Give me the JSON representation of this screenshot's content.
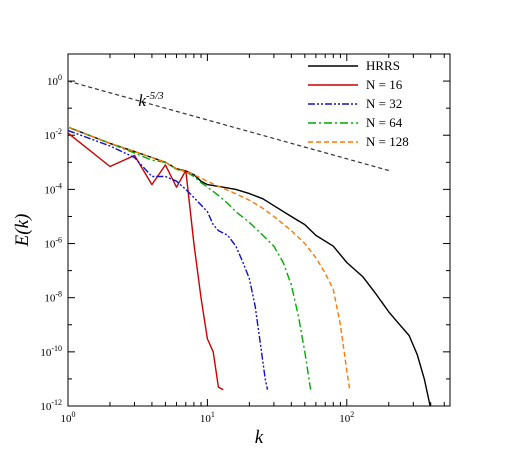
{
  "chart_data": {
    "type": "line",
    "xlabel": "k",
    "ylabel": "E(k)",
    "x_scale": "log",
    "y_scale": "log",
    "xlim": [
      1,
      550
    ],
    "ylim": [
      1e-12,
      10
    ],
    "x_ticks": [
      {
        "value": 1,
        "base": "10",
        "exp": "0"
      },
      {
        "value": 10,
        "base": "10",
        "exp": "1"
      },
      {
        "value": 100,
        "base": "10",
        "exp": "2"
      }
    ],
    "y_ticks": [
      {
        "value": 1,
        "base": "10",
        "exp": "0"
      },
      {
        "value": 0.01,
        "base": "10",
        "exp": "-2"
      },
      {
        "value": 0.0001,
        "base": "10",
        "exp": "-4"
      },
      {
        "value": 1e-06,
        "base": "10",
        "exp": "-6"
      },
      {
        "value": 1e-08,
        "base": "10",
        "exp": "-8"
      },
      {
        "value": 1e-10,
        "base": "10",
        "exp": "-10"
      },
      {
        "value": 1e-12,
        "base": "10",
        "exp": "-12"
      }
    ],
    "grid": false,
    "legend_position": "top-right",
    "annotation": {
      "base": "k",
      "exp": "-5/3",
      "x": 3.2,
      "y": 0.12
    },
    "reference_line": {
      "style": "dashed",
      "color": "#333333",
      "points": [
        [
          1,
          1.0
        ],
        [
          200,
          0.0005
        ]
      ]
    },
    "series": [
      {
        "name": "HRRS",
        "color": "#000000",
        "dash": "",
        "points": [
          [
            1,
            0.02
          ],
          [
            2,
            0.005
          ],
          [
            3,
            0.0025
          ],
          [
            4,
            0.0015
          ],
          [
            5,
            0.001
          ],
          [
            6,
            0.00058
          ],
          [
            7,
            0.00048
          ],
          [
            8,
            0.00035
          ],
          [
            9,
            0.0002
          ],
          [
            10,
            0.00015
          ],
          [
            13,
            0.00012
          ],
          [
            16,
            0.0001
          ],
          [
            20,
            7e-05
          ],
          [
            25,
            4.5e-05
          ],
          [
            30,
            2.5e-05
          ],
          [
            40,
            1e-05
          ],
          [
            50,
            5e-06
          ],
          [
            60,
            2e-06
          ],
          [
            80,
            8e-07
          ],
          [
            100,
            2e-07
          ],
          [
            130,
            6e-08
          ],
          [
            160,
            1.5e-08
          ],
          [
            200,
            3e-09
          ],
          [
            240,
            1e-09
          ],
          [
            280,
            4e-10
          ],
          [
            320,
            8e-11
          ],
          [
            360,
            1e-11
          ],
          [
            400,
            8e-13
          ]
        ]
      },
      {
        "name": "N = 16",
        "color": "#cc0000",
        "dash": "",
        "points": [
          [
            1,
            0.012
          ],
          [
            2,
            0.0007
          ],
          [
            3,
            0.0018
          ],
          [
            4,
            0.00015
          ],
          [
            5,
            0.0008
          ],
          [
            6,
            0.00012
          ],
          [
            7,
            0.0005
          ],
          [
            8,
            1e-06
          ],
          [
            9,
            1e-08
          ],
          [
            10,
            3e-10
          ],
          [
            11,
            1e-10
          ],
          [
            12,
            5e-12
          ],
          [
            13,
            4e-12
          ]
        ]
      },
      {
        "name": "N = 32",
        "color": "#1010cc",
        "dash": "7,2,2,2,2,2",
        "points": [
          [
            1,
            0.015
          ],
          [
            2,
            0.004
          ],
          [
            3,
            0.0015
          ],
          [
            4,
            0.0003
          ],
          [
            5,
            0.0003
          ],
          [
            6,
            0.0002
          ],
          [
            7,
            0.0001
          ],
          [
            8,
            5e-05
          ],
          [
            10,
            1.5e-05
          ],
          [
            11,
            5e-06
          ],
          [
            12,
            3e-06
          ],
          [
            14,
            2e-06
          ],
          [
            16,
            8e-07
          ],
          [
            18,
            2e-07
          ],
          [
            20,
            5e-08
          ],
          [
            22,
            5e-09
          ],
          [
            24,
            2e-10
          ],
          [
            26,
            1e-11
          ],
          [
            27,
            4e-12
          ]
        ]
      },
      {
        "name": "N = 64",
        "color": "#00aa00",
        "dash": "8,3,2,3",
        "points": [
          [
            1,
            0.02
          ],
          [
            2,
            0.005
          ],
          [
            3,
            0.0022
          ],
          [
            4,
            0.0012
          ],
          [
            5,
            0.001
          ],
          [
            6,
            0.00055
          ],
          [
            7,
            0.00045
          ],
          [
            8,
            0.0003
          ],
          [
            9,
            0.00018
          ],
          [
            10,
            0.00012
          ],
          [
            12,
            6e-05
          ],
          [
            14,
            3e-05
          ],
          [
            16,
            1.5e-05
          ],
          [
            20,
            6e-06
          ],
          [
            25,
            2e-06
          ],
          [
            30,
            8e-07
          ],
          [
            35,
            2e-07
          ],
          [
            40,
            3e-08
          ],
          [
            45,
            2e-09
          ],
          [
            50,
            1e-10
          ],
          [
            55,
            4e-12
          ]
        ]
      },
      {
        "name": "N = 128",
        "color": "#ff7700",
        "dash": "5,3",
        "points": [
          [
            1,
            0.02
          ],
          [
            2,
            0.005
          ],
          [
            3,
            0.0025
          ],
          [
            4,
            0.0015
          ],
          [
            5,
            0.001
          ],
          [
            6,
            0.00058
          ],
          [
            7,
            0.00045
          ],
          [
            8,
            0.00035
          ],
          [
            10,
            0.0002
          ],
          [
            12,
            0.00013
          ],
          [
            15,
            8e-05
          ],
          [
            20,
            4e-05
          ],
          [
            25,
            2e-05
          ],
          [
            30,
            1e-05
          ],
          [
            40,
            3e-06
          ],
          [
            50,
            1e-06
          ],
          [
            60,
            3e-07
          ],
          [
            70,
            8e-08
          ],
          [
            80,
            2e-08
          ],
          [
            90,
            1e-09
          ],
          [
            100,
            2e-11
          ],
          [
            105,
            4e-12
          ]
        ]
      }
    ]
  }
}
